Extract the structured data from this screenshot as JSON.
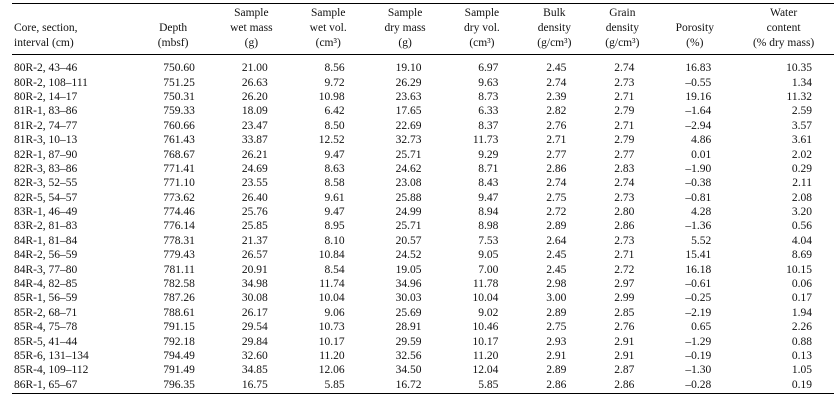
{
  "headers": [
    [
      "Core, section,",
      "interval (cm)"
    ],
    [
      "Depth",
      "(mbsf)"
    ],
    [
      "Sample",
      "wet mass",
      "(g)"
    ],
    [
      "Sample",
      "wet vol.",
      "(cm³)"
    ],
    [
      "Sample",
      "dry mass",
      "(g)"
    ],
    [
      "Sample",
      "dry vol.",
      "(cm³)"
    ],
    [
      "Bulk",
      "density",
      "(g/cm³)"
    ],
    [
      "Grain",
      "density",
      "(g/cm³)"
    ],
    [
      "Porosity",
      "(%)"
    ],
    [
      "Water",
      "content",
      "(% dry mass)"
    ]
  ],
  "rows": [
    [
      "80R-2, 43–46",
      "750.60",
      "21.00",
      "8.56",
      "19.10",
      "6.97",
      "2.45",
      "2.74",
      "16.83",
      "10.35"
    ],
    [
      "80R-2, 108–111",
      "751.25",
      "26.63",
      "9.72",
      "26.29",
      "9.63",
      "2.74",
      "2.73",
      "–0.55",
      "1.34"
    ],
    [
      "80R-2, 14–17",
      "750.31",
      "26.20",
      "10.98",
      "23.63",
      "8.73",
      "2.39",
      "2.71",
      "19.16",
      "11.32"
    ],
    [
      "81R-1, 83–86",
      "759.33",
      "18.09",
      "6.42",
      "17.65",
      "6.33",
      "2.82",
      "2.79",
      "–1.64",
      "2.59"
    ],
    [
      "81R-2, 74–77",
      "760.66",
      "23.47",
      "8.50",
      "22.69",
      "8.37",
      "2.76",
      "2.71",
      "–2.94",
      "3.57"
    ],
    [
      "81R-3, 10–13",
      "761.43",
      "33.87",
      "12.52",
      "32.73",
      "11.73",
      "2.71",
      "2.79",
      "4.86",
      "3.61"
    ],
    [
      "82R-1, 87–90",
      "768.67",
      "26.21",
      "9.47",
      "25.71",
      "9.29",
      "2.77",
      "2.77",
      "0.01",
      "2.02"
    ],
    [
      "82R-3, 83–86",
      "771.41",
      "24.69",
      "8.63",
      "24.62",
      "8.71",
      "2.86",
      "2.83",
      "–1.90",
      "0.29"
    ],
    [
      "82R-3, 52–55",
      "771.10",
      "23.55",
      "8.58",
      "23.08",
      "8.43",
      "2.74",
      "2.74",
      "–0.38",
      "2.11"
    ],
    [
      "82R-5, 54–57",
      "773.62",
      "26.40",
      "9.61",
      "25.88",
      "9.47",
      "2.75",
      "2.73",
      "–0.81",
      "2.08"
    ],
    [
      "83R-1, 46–49",
      "774.46",
      "25.76",
      "9.47",
      "24.99",
      "8.94",
      "2.72",
      "2.80",
      "4.28",
      "3.20"
    ],
    [
      "83R-2, 81–83",
      "776.14",
      "25.85",
      "8.95",
      "25.71",
      "8.98",
      "2.89",
      "2.86",
      "–1.36",
      "0.56"
    ],
    [
      "84R-1, 81–84",
      "778.31",
      "21.37",
      "8.10",
      "20.57",
      "7.53",
      "2.64",
      "2.73",
      "5.52",
      "4.04"
    ],
    [
      "84R-2, 56–59",
      "779.43",
      "26.57",
      "10.84",
      "24.52",
      "9.05",
      "2.45",
      "2.71",
      "15.41",
      "8.69"
    ],
    [
      "84R-3, 77–80",
      "781.11",
      "20.91",
      "8.54",
      "19.05",
      "7.00",
      "2.45",
      "2.72",
      "16.18",
      "10.15"
    ],
    [
      "84R-4, 82–85",
      "782.58",
      "34.98",
      "11.74",
      "34.96",
      "11.78",
      "2.98",
      "2.97",
      "–0.61",
      "0.06"
    ],
    [
      "85R-1, 56–59",
      "787.26",
      "30.08",
      "10.04",
      "30.03",
      "10.04",
      "3.00",
      "2.99",
      "–0.25",
      "0.17"
    ],
    [
      "85R-2, 68–71",
      "788.61",
      "26.17",
      "9.06",
      "25.69",
      "9.02",
      "2.89",
      "2.85",
      "–2.19",
      "1.94"
    ],
    [
      "85R-4, 75–78",
      "791.15",
      "29.54",
      "10.73",
      "28.91",
      "10.46",
      "2.75",
      "2.76",
      "0.65",
      "2.26"
    ],
    [
      "85R-5, 41–44",
      "792.18",
      "29.84",
      "10.17",
      "29.59",
      "10.17",
      "2.93",
      "2.91",
      "–1.29",
      "0.88"
    ],
    [
      "85R-6, 131–134",
      "794.49",
      "32.60",
      "11.20",
      "32.56",
      "11.20",
      "2.91",
      "2.91",
      "–0.19",
      "0.13"
    ],
    [
      "85R-4, 109–112",
      "791.49",
      "34.85",
      "12.06",
      "34.50",
      "12.04",
      "2.89",
      "2.87",
      "–1.30",
      "1.05"
    ],
    [
      "86R-1, 65–67",
      "796.35",
      "16.75",
      "5.85",
      "16.72",
      "5.85",
      "2.86",
      "2.86",
      "–0.28",
      "0.19"
    ]
  ]
}
